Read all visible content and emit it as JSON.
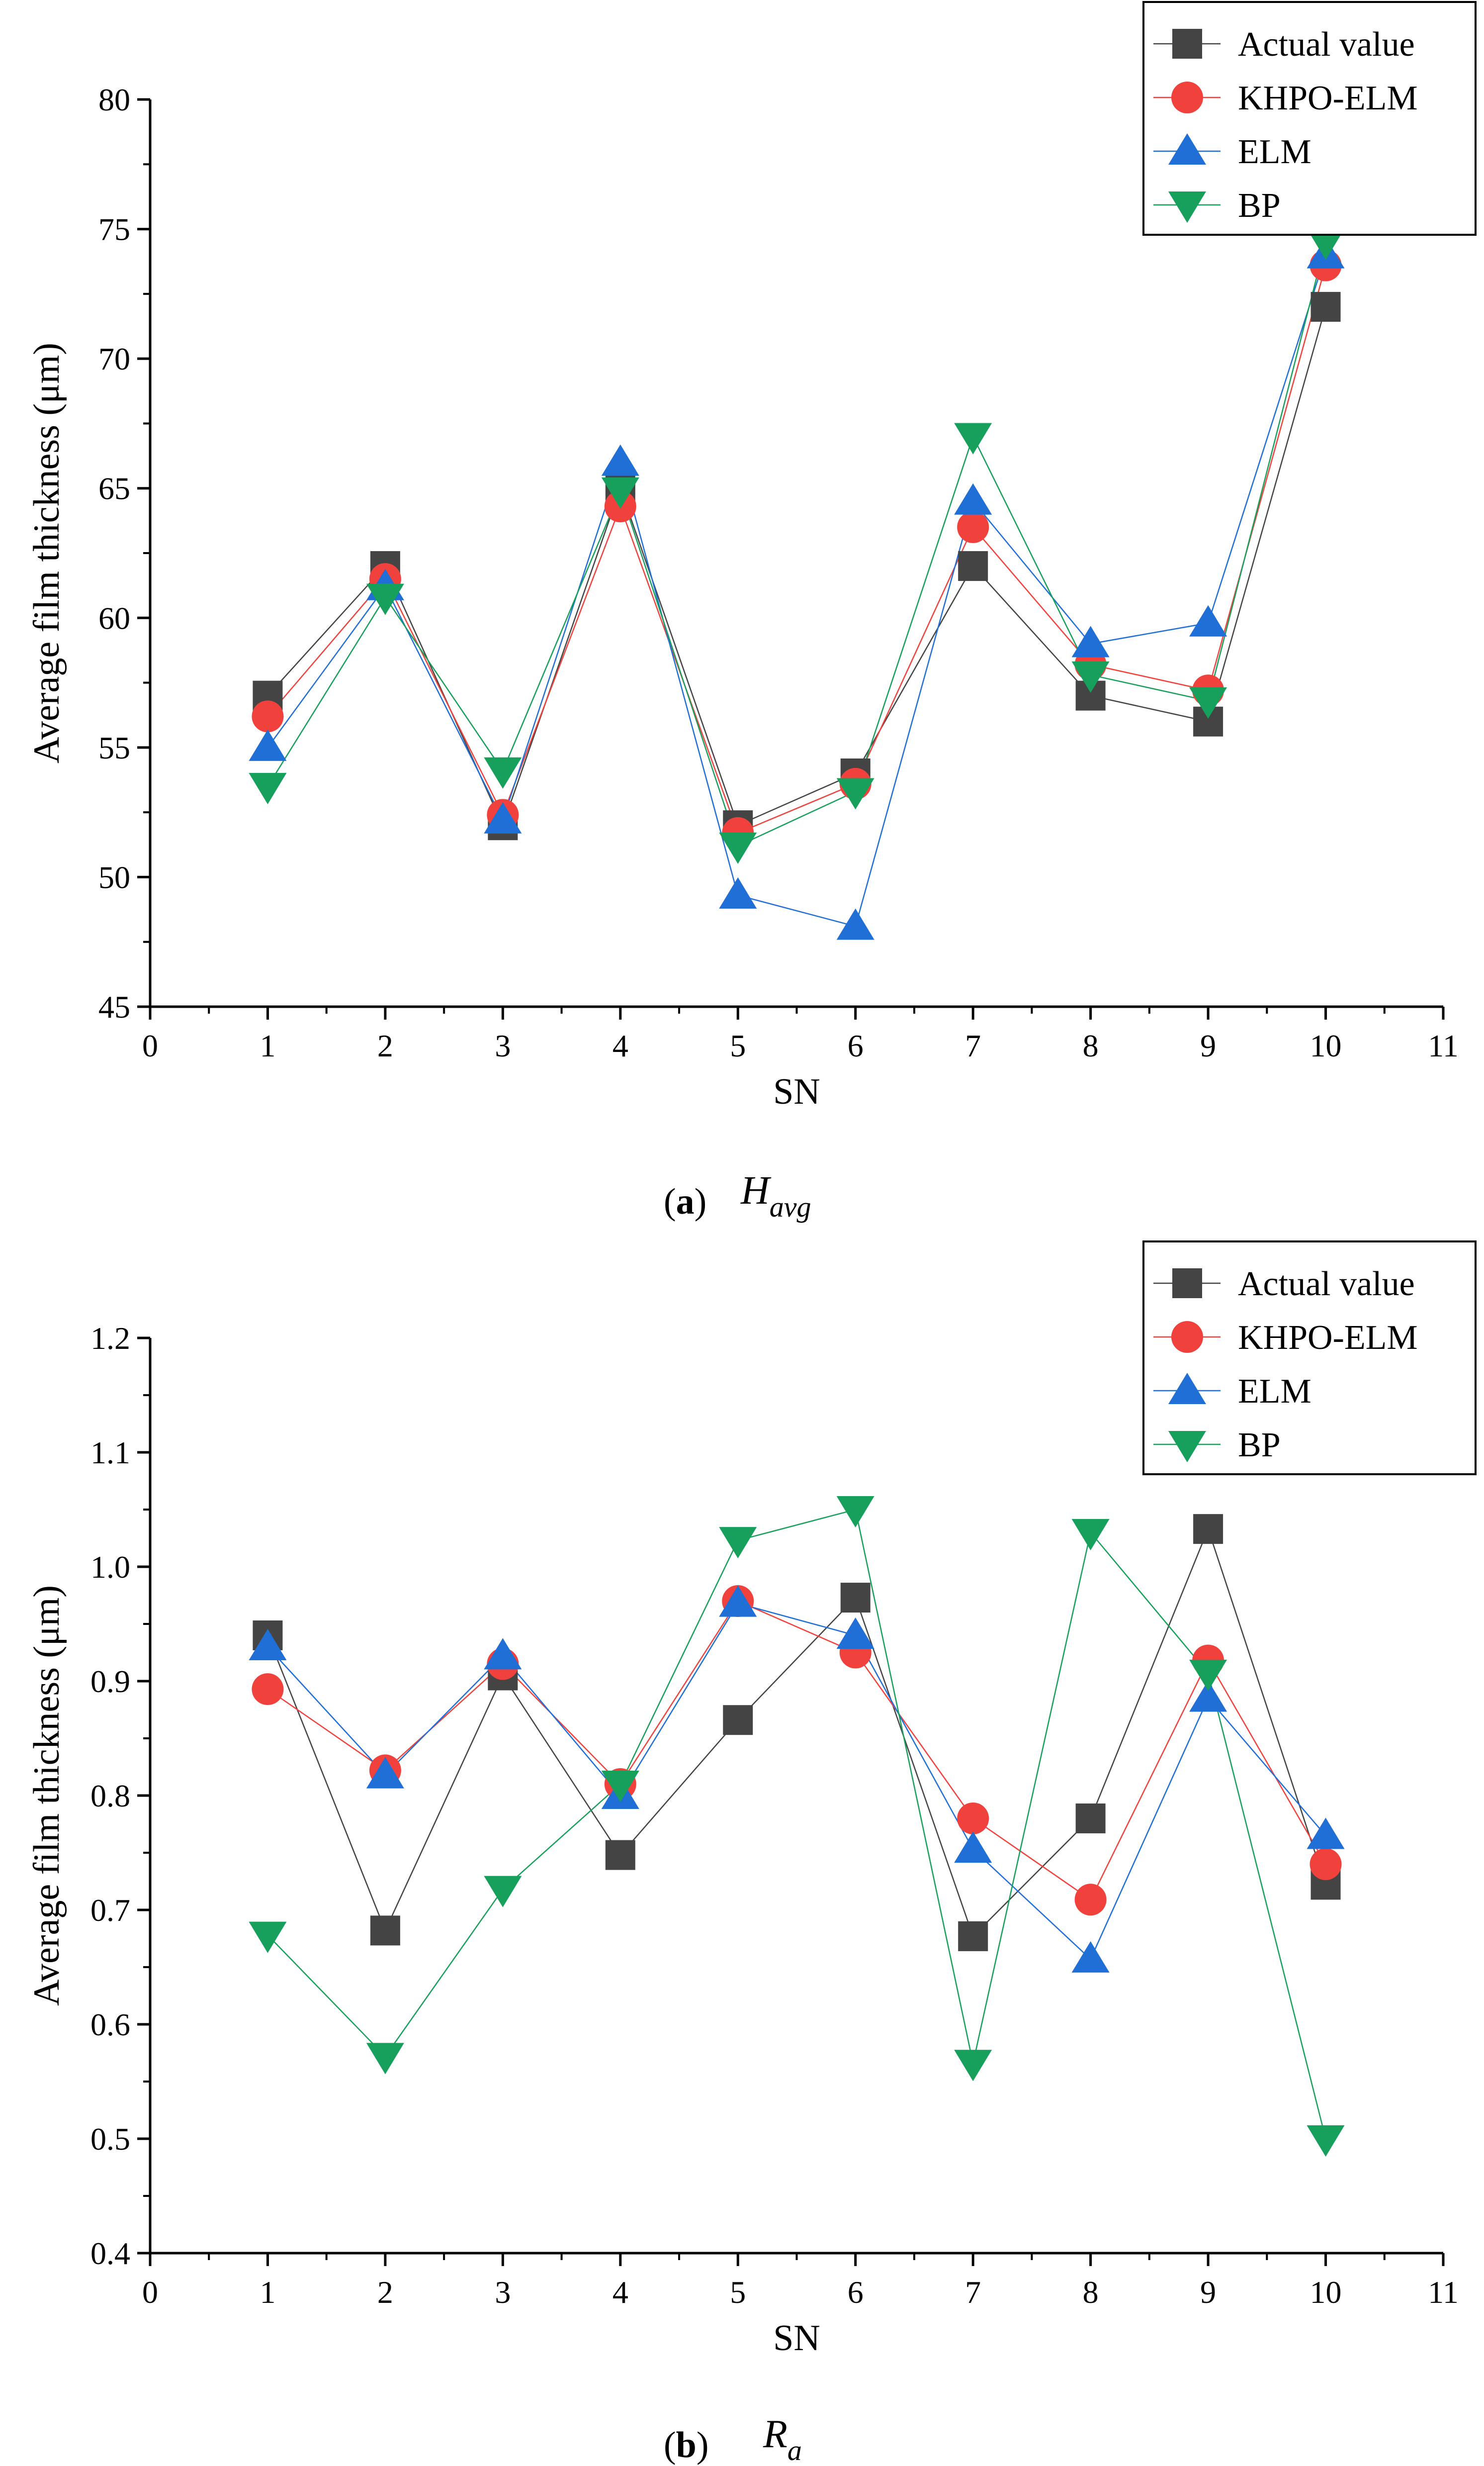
{
  "chart_data": [
    {
      "type": "line",
      "panel_letter": "a",
      "caption_symbol": "H",
      "caption_subscript": "avg",
      "xlabel": "SN",
      "ylabel": "Average film thickness (μm)",
      "xlim": [
        0,
        11
      ],
      "ylim": [
        45,
        80
      ],
      "xticks": [
        0,
        1,
        2,
        3,
        4,
        5,
        6,
        7,
        8,
        9,
        10,
        11
      ],
      "yticks": [
        45,
        50,
        55,
        60,
        65,
        70,
        75,
        80
      ],
      "ytick_labels": [
        "45",
        "50",
        "55",
        "60",
        "65",
        "70",
        "75",
        "80"
      ],
      "legend_position": "top-right",
      "x": [
        1,
        2,
        3,
        4,
        5,
        6,
        7,
        8,
        9,
        10
      ],
      "series": [
        {
          "name": "Actual value",
          "color": "#444444",
          "marker": "square",
          "values": [
            57.0,
            62.0,
            52.0,
            65.0,
            52.0,
            54.0,
            62.0,
            57.0,
            56.0,
            72.0
          ]
        },
        {
          "name": "KHPO-ELM",
          "color": "#f0413c",
          "marker": "circle",
          "values": [
            56.2,
            61.5,
            52.4,
            64.3,
            51.7,
            53.6,
            63.5,
            58.2,
            57.2,
            73.6
          ]
        },
        {
          "name": "ELM",
          "color": "#1f6fd6",
          "marker": "triangle-up",
          "values": [
            55.0,
            61.2,
            52.2,
            66.0,
            49.3,
            48.1,
            64.5,
            59.0,
            59.8,
            74.0
          ]
        },
        {
          "name": "BP",
          "color": "#17a05b",
          "marker": "triangle-down",
          "values": [
            53.5,
            60.8,
            54.1,
            64.9,
            51.2,
            53.3,
            67.0,
            57.8,
            56.8,
            74.5
          ]
        }
      ]
    },
    {
      "type": "line",
      "panel_letter": "b",
      "caption_symbol": "R",
      "caption_subscript": "a",
      "xlabel": "SN",
      "ylabel": "Average film thickness (μm)",
      "xlim": [
        0,
        11
      ],
      "ylim": [
        0.4,
        1.2
      ],
      "xticks": [
        0,
        1,
        2,
        3,
        4,
        5,
        6,
        7,
        8,
        9,
        10,
        11
      ],
      "yticks": [
        0.4,
        0.5,
        0.6,
        0.7,
        0.8,
        0.9,
        1.0,
        1.1,
        1.2
      ],
      "ytick_labels": [
        "0.4",
        "0.5",
        "0.6",
        "0.7",
        "0.8",
        "0.9",
        "1.0",
        "1.1",
        "1.2"
      ],
      "legend_position": "top-right",
      "x": [
        1,
        2,
        3,
        4,
        5,
        6,
        7,
        8,
        9,
        10
      ],
      "series": [
        {
          "name": "Actual value",
          "color": "#444444",
          "marker": "square",
          "values": [
            0.94,
            0.682,
            0.905,
            0.748,
            0.866,
            0.973,
            0.677,
            0.78,
            1.033,
            0.722
          ]
        },
        {
          "name": "KHPO-ELM",
          "color": "#f0413c",
          "marker": "circle",
          "values": [
            0.893,
            0.822,
            0.915,
            0.81,
            0.97,
            0.925,
            0.78,
            0.709,
            0.918,
            0.74
          ]
        },
        {
          "name": "ELM",
          "color": "#1f6fd6",
          "marker": "triangle-up",
          "values": [
            0.93,
            0.818,
            0.922,
            0.8,
            0.968,
            0.94,
            0.753,
            0.657,
            0.885,
            0.765
          ]
        },
        {
          "name": "BP",
          "color": "#17a05b",
          "marker": "triangle-down",
          "values": [
            0.678,
            0.572,
            0.718,
            0.81,
            1.023,
            1.05,
            0.566,
            1.03,
            0.907,
            0.5
          ]
        }
      ]
    }
  ]
}
